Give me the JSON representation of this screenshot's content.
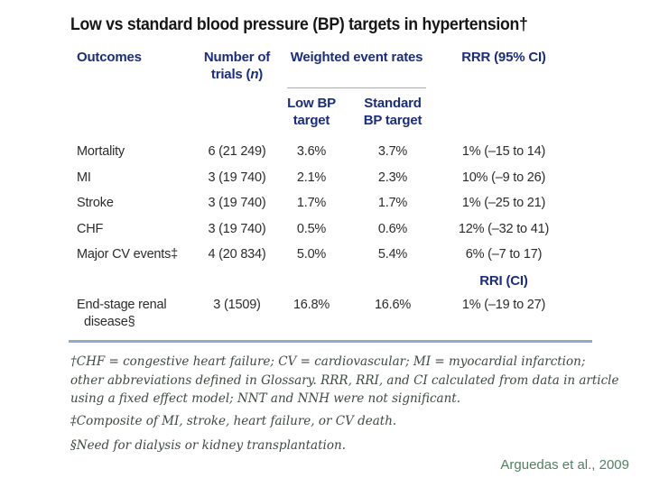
{
  "title": "Low vs standard blood pressure (BP) targets in hypertension†",
  "table": {
    "headers": {
      "outcomes": "Outcomes",
      "trials_line1": "Number of",
      "trials_pre": "trials (",
      "trials_n": "n",
      "trials_post": ")",
      "weighted": "Weighted event rates",
      "rrr": "RRR (95% CI)",
      "low_line1": "Low BP",
      "low_line2": "target",
      "std_line1": "Standard",
      "std_line2": "BP target",
      "rri": "RRI (CI)"
    },
    "rows": [
      {
        "outcome": "Mortality",
        "trials": "6 (21 249)",
        "low": "3.6%",
        "std": "3.7%",
        "rrr": "1% (–15 to 14)"
      },
      {
        "outcome": "MI",
        "trials": "3 (19 740)",
        "low": "2.1%",
        "std": "2.3%",
        "rrr": "10% (–9 to 26)"
      },
      {
        "outcome": "Stroke",
        "trials": "3 (19 740)",
        "low": "1.7%",
        "std": "1.7%",
        "rrr": "1% (–25 to 21)"
      },
      {
        "outcome": "CHF",
        "trials": "3 (19 740)",
        "low": "0.5%",
        "std": "0.6%",
        "rrr": "12% (–32 to 41)"
      },
      {
        "outcome": "Major CV events‡",
        "trials": "4 (20 834)",
        "low": "5.0%",
        "std": "5.4%",
        "rrr": "6% (–7 to 17)"
      }
    ],
    "esrd": {
      "outcome_line1": "End-stage renal",
      "outcome_line2": "disease§",
      "trials": "3 (1509)",
      "low": "16.8%",
      "std": "16.6%",
      "rri": "1% (–19 to 27)"
    }
  },
  "footnotes": {
    "f1_lines": [
      "†CHF = congestive heart failure; CV = cardiovascular; MI = myocardial infarction;",
      "other abbreviations defined in Glossary. RRR, RRI, and CI calculated from data in article",
      "using a fixed effect model; NNT and NNH were not significant."
    ],
    "f2": "‡Composite of MI, stroke, heart failure, or CV death.",
    "f3": "§Need for dialysis or kidney transplantation."
  },
  "citation": "Arguedas et al., 2009",
  "colors": {
    "header_blue": "#1b2d7e",
    "rule_blue": "#8fadc8",
    "footnote_green": "#3d4a41",
    "citation_green": "#518063"
  }
}
